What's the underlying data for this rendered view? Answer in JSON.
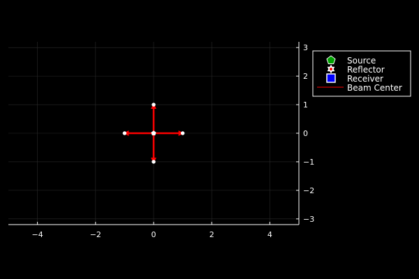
{
  "chart_data": {
    "type": "scatter",
    "title": "",
    "xlabel": "",
    "ylabel": "",
    "xlim": [
      -5,
      5
    ],
    "ylim": [
      -3.2,
      3.2
    ],
    "x_ticks": [
      -4,
      -2,
      0,
      2,
      4
    ],
    "y_ticks": [
      -3,
      -2,
      -1,
      0,
      1,
      2,
      3
    ],
    "y_axis_side": "right",
    "grid": true,
    "legend_position": "top-right",
    "background": "#000000",
    "series": [
      {
        "name": "Source",
        "marker": "pentagon",
        "color": "#00a000",
        "points": [
          [
            0,
            0
          ]
        ]
      },
      {
        "name": "Reflector",
        "marker": "star",
        "color": "#ffffff",
        "points": [
          [
            1,
            0
          ],
          [
            -1,
            0
          ],
          [
            0,
            1
          ],
          [
            0,
            -1
          ]
        ]
      },
      {
        "name": "Receiver",
        "marker": "square",
        "color": "#0000ff",
        "points": []
      },
      {
        "name": "Beam Center",
        "marker": "line",
        "color": "#ff0000",
        "arrows": [
          {
            "from": [
              0,
              0
            ],
            "to": [
              1,
              0
            ]
          },
          {
            "from": [
              0,
              0
            ],
            "to": [
              -1,
              0
            ]
          },
          {
            "from": [
              0,
              0
            ],
            "to": [
              0,
              1
            ]
          },
          {
            "from": [
              0,
              0
            ],
            "to": [
              0,
              -1
            ]
          }
        ]
      }
    ]
  }
}
